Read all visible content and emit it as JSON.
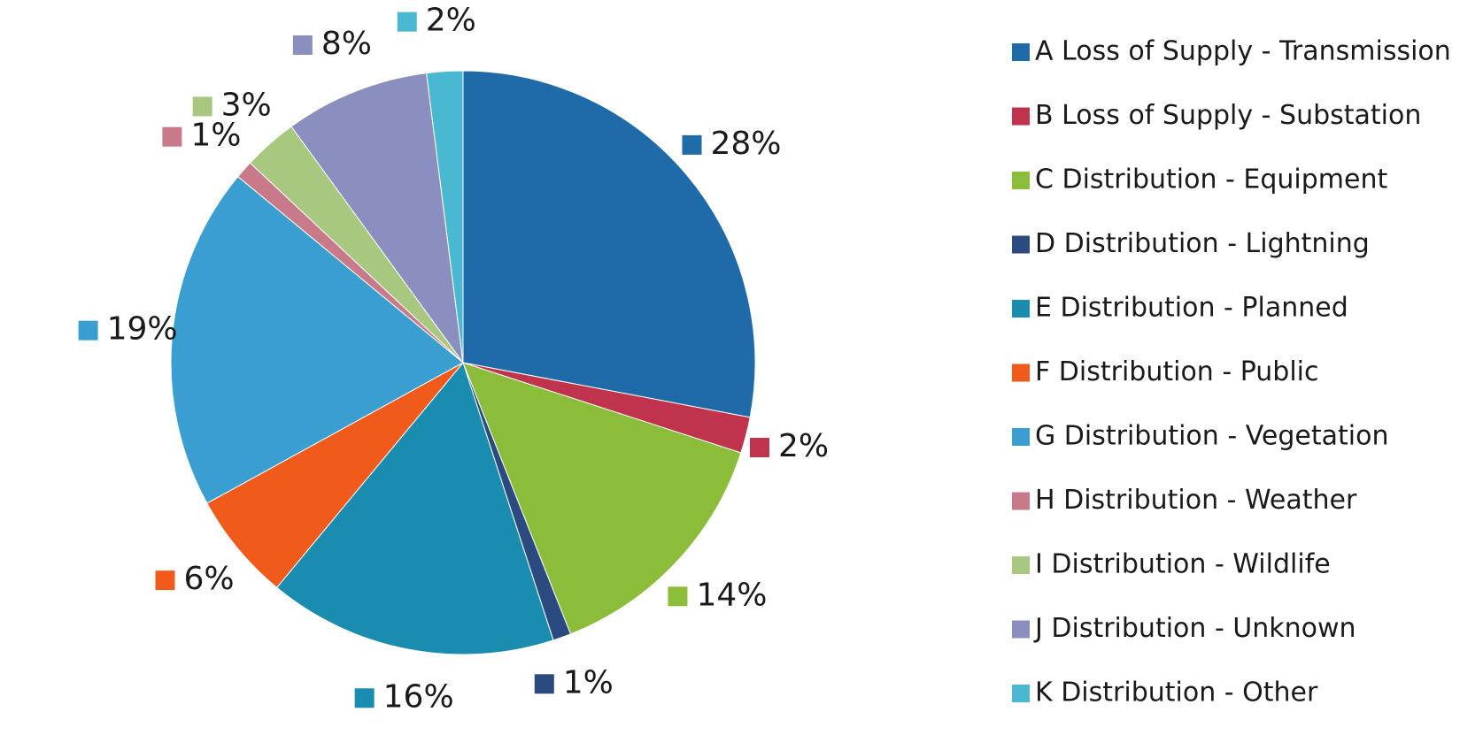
{
  "chart_data": {
    "type": "pie",
    "categories": [
      "A Loss of Supply - Transmission",
      "B Loss of Supply - Substation",
      "C Distribution - Equipment",
      "D Distribution - Lightning",
      "E Distribution - Planned",
      "F Distribution - Public",
      "G Distribution - Vegetation",
      "H Distribution - Weather",
      "I Distribution - Wildlife",
      "J Distribution - Unknown",
      "K Distribution - Other"
    ],
    "values": [
      28,
      2,
      14,
      1,
      16,
      6,
      19,
      1,
      3,
      8,
      2
    ],
    "value_labels": [
      "28%",
      "2%",
      "14%",
      "1%",
      "16%",
      "6%",
      "19%",
      "1%",
      "3%",
      "8%",
      "2%"
    ],
    "colors": [
      "#1f6aa8",
      "#c0334d",
      "#8bbd3a",
      "#2b4a80",
      "#1a8cb0",
      "#f05a1a",
      "#3a9fd0",
      "#c87a8a",
      "#a8c880",
      "#8a8fc0",
      "#4ab8d0"
    ],
    "legend": "right"
  }
}
